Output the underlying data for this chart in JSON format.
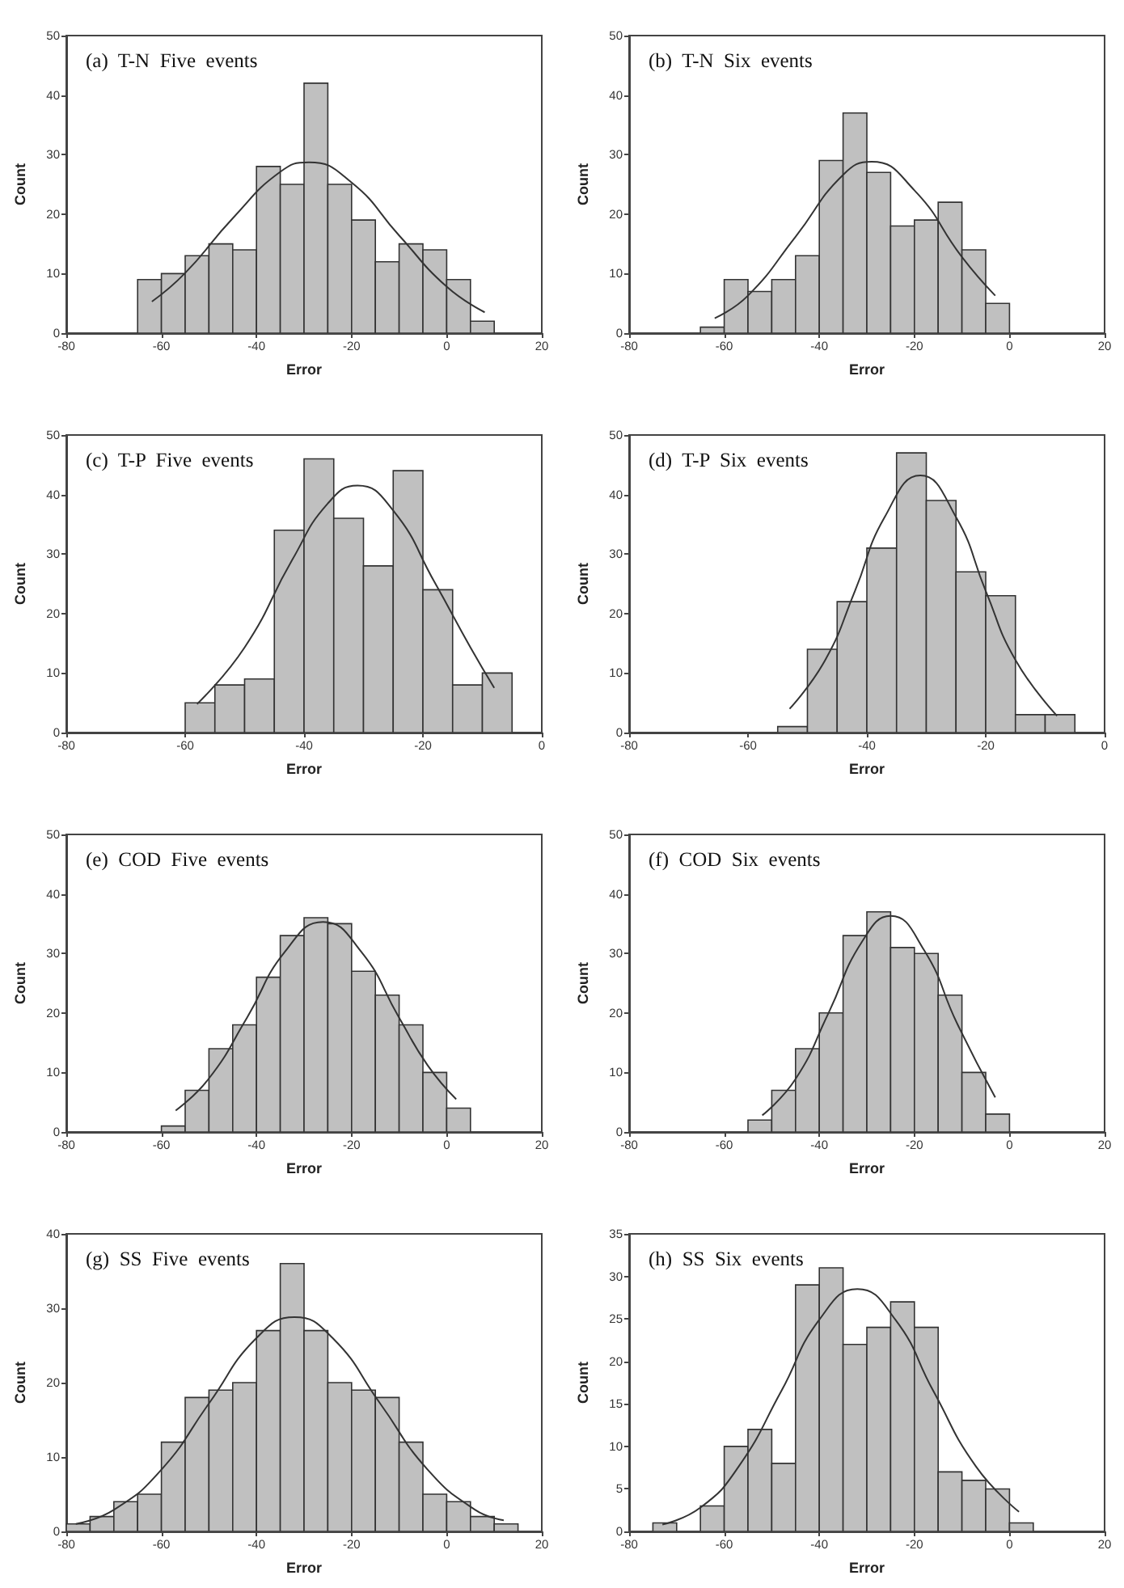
{
  "chart_data": [
    {
      "type": "histogram",
      "title": "(a)  T-N  Five  events",
      "xlabel": "Error",
      "ylabel": "Count",
      "color": "#c0c0c0",
      "xlim": [
        -80,
        20
      ],
      "xticks": [
        -80,
        -60,
        -40,
        -20,
        0,
        20
      ],
      "ylim": [
        0,
        50
      ],
      "yticks": [
        0,
        10,
        20,
        30,
        40,
        50
      ],
      "bins": [
        -65,
        -60,
        -55,
        -50,
        -45,
        -40,
        -35,
        -30,
        -25,
        -20,
        -15,
        -10,
        -5,
        0,
        5,
        10
      ],
      "values": [
        9,
        10,
        13,
        15,
        14,
        28,
        25,
        42,
        25,
        19,
        12,
        15,
        14,
        9,
        2
      ],
      "series": [
        {
          "type": "line",
          "color": "#333333",
          "x": [
            -62,
            -55,
            -45,
            -35,
            -29,
            -20,
            -10,
            0,
            8
          ],
          "values": [
            5.3,
            10.1,
            19.3,
            27.1,
            28.7,
            25.3,
            16.4,
            7.8,
            3.5
          ]
        }
      ]
    },
    {
      "type": "histogram",
      "title": "(b)  T-N  Six  events",
      "xlabel": "Error",
      "ylabel": "Count",
      "color": "#c0c0c0",
      "xlim": [
        -80,
        20
      ],
      "xticks": [
        -80,
        -60,
        -40,
        -20,
        0,
        20
      ],
      "ylim": [
        0,
        50
      ],
      "yticks": [
        0,
        10,
        20,
        30,
        40,
        50
      ],
      "bins": [
        -65,
        -60,
        -55,
        -50,
        -45,
        -40,
        -35,
        -30,
        -25,
        -20,
        -15,
        -10,
        -5,
        0
      ],
      "values": [
        1,
        9,
        7,
        9,
        13,
        29,
        37,
        27,
        18,
        19,
        22,
        14,
        5
      ],
      "series": [
        {
          "type": "line",
          "color": "#333333",
          "x": [
            -62,
            -55,
            -45,
            -35,
            -29,
            -20,
            -10,
            -3
          ],
          "values": [
            2.5,
            6.3,
            16.2,
            26.6,
            28.8,
            24,
            12.8,
            6.3
          ]
        }
      ]
    },
    {
      "type": "histogram",
      "title": "(c)  T-P  Five  events",
      "xlabel": "Error",
      "ylabel": "Count",
      "color": "#c0c0c0",
      "xlim": [
        -80,
        0
      ],
      "xticks": [
        -80,
        -60,
        -40,
        -20,
        0
      ],
      "ylim": [
        0,
        50
      ],
      "yticks": [
        0,
        10,
        20,
        30,
        40,
        50
      ],
      "bins": [
        -60,
        -55,
        -50,
        -45,
        -40,
        -35,
        -30,
        -25,
        -20,
        -15,
        -10,
        -5
      ],
      "values": [
        5,
        8,
        9,
        34,
        46,
        36,
        28,
        44,
        24,
        8,
        10
      ],
      "series": [
        {
          "type": "line",
          "color": "#333333",
          "x": [
            -58,
            -50,
            -42,
            -36,
            -31,
            -25,
            -18,
            -12,
            -8
          ],
          "values": [
            4.8,
            14.3,
            29,
            38.5,
            41.5,
            37.3,
            25.2,
            14.3,
            7.5
          ]
        }
      ]
    },
    {
      "type": "histogram",
      "title": "(d)  T-P  Six  events",
      "xlabel": "Error",
      "ylabel": "Count",
      "color": "#c0c0c0",
      "xlim": [
        -80,
        0
      ],
      "xticks": [
        -80,
        -60,
        -40,
        -20,
        0
      ],
      "ylim": [
        0,
        50
      ],
      "yticks": [
        0,
        10,
        20,
        30,
        40,
        50
      ],
      "bins": [
        -55,
        -50,
        -45,
        -40,
        -35,
        -30,
        -25,
        -20,
        -15,
        -10,
        -5
      ],
      "values": [
        1,
        14,
        22,
        31,
        47,
        39,
        27,
        23,
        3,
        3
      ],
      "series": [
        {
          "type": "line",
          "color": "#333333",
          "x": [
            -53,
            -47,
            -42,
            -37,
            -31,
            -25,
            -20,
            -15,
            -8
          ],
          "values": [
            4,
            12.2,
            23.8,
            36.2,
            43.2,
            36.2,
            23.8,
            12.2,
            2.8
          ]
        }
      ]
    },
    {
      "type": "histogram",
      "title": "(e)  COD  Five  events",
      "xlabel": "Error",
      "ylabel": "Count",
      "color": "#c0c0c0",
      "xlim": [
        -80,
        20
      ],
      "xticks": [
        -80,
        -60,
        -40,
        -20,
        0,
        20
      ],
      "ylim": [
        0,
        50
      ],
      "yticks": [
        0,
        10,
        20,
        30,
        40,
        50
      ],
      "bins": [
        -60,
        -55,
        -50,
        -45,
        -40,
        -35,
        -30,
        -25,
        -20,
        -15,
        -10,
        -5,
        0,
        5
      ],
      "values": [
        1,
        7,
        14,
        18,
        26,
        33,
        36,
        35,
        27,
        23,
        18,
        10,
        4
      ],
      "series": [
        {
          "type": "line",
          "color": "#333333",
          "x": [
            -57,
            -50,
            -42,
            -34,
            -26,
            -18,
            -10,
            -4,
            2
          ],
          "values": [
            3.6,
            9,
            19.2,
            30.3,
            35.3,
            30.3,
            19.2,
            11.2,
            5.5
          ]
        }
      ]
    },
    {
      "type": "histogram",
      "title": "(f)  COD  Six  events",
      "xlabel": "Error",
      "ylabel": "Count",
      "color": "#c0c0c0",
      "xlim": [
        -80,
        20
      ],
      "xticks": [
        -80,
        -60,
        -40,
        -20,
        0,
        20
      ],
      "ylim": [
        0,
        50
      ],
      "yticks": [
        0,
        10,
        20,
        30,
        40,
        50
      ],
      "bins": [
        -55,
        -50,
        -45,
        -40,
        -35,
        -30,
        -25,
        -20,
        -15,
        -10,
        -5,
        0
      ],
      "values": [
        2,
        7,
        14,
        20,
        33,
        37,
        31,
        30,
        23,
        10,
        3
      ],
      "series": [
        {
          "type": "line",
          "color": "#333333",
          "x": [
            -52,
            -45,
            -38,
            -31,
            -25,
            -18,
            -11,
            -3
          ],
          "values": [
            2.8,
            8.9,
            20.1,
            32,
            36.3,
            30.6,
            18.2,
            5.8
          ]
        }
      ]
    },
    {
      "type": "histogram",
      "title": "(g)  SS  Five  events",
      "xlabel": "Error",
      "ylabel": "Count",
      "color": "#c0c0c0",
      "xlim": [
        -80,
        20
      ],
      "xticks": [
        -80,
        -60,
        -40,
        -20,
        0,
        20
      ],
      "ylim": [
        0,
        40
      ],
      "yticks": [
        0,
        10,
        20,
        30,
        40
      ],
      "bins": [
        -80,
        -75,
        -70,
        -65,
        -60,
        -55,
        -50,
        -45,
        -40,
        -35,
        -30,
        -25,
        -20,
        -15,
        -10,
        -5,
        0,
        5,
        10,
        15
      ],
      "values": [
        1,
        2,
        4,
        5,
        12,
        18,
        19,
        20,
        27,
        36,
        27,
        20,
        19,
        18,
        12,
        5,
        4,
        2,
        1
      ],
      "series": [
        {
          "type": "line",
          "color": "#333333",
          "x": [
            -78,
            -70,
            -60,
            -50,
            -40,
            -32,
            -24,
            -14,
            -4,
            6,
            12
          ],
          "values": [
            1,
            2.9,
            8.3,
            17.2,
            26,
            28.8,
            26,
            17.2,
            8.3,
            2.9,
            1.5
          ]
        }
      ]
    },
    {
      "type": "histogram",
      "title": "(h)  SS  Six  events",
      "xlabel": "Error",
      "ylabel": "Count",
      "color": "#c0c0c0",
      "xlim": [
        -80,
        20
      ],
      "xticks": [
        -80,
        -60,
        -40,
        -20,
        0,
        20
      ],
      "ylim": [
        0,
        35
      ],
      "yticks": [
        0,
        5,
        10,
        15,
        20,
        25,
        30,
        35
      ],
      "bins": [
        -75,
        -70,
        -65,
        -60,
        -55,
        -50,
        -45,
        -40,
        -35,
        -30,
        -25,
        -20,
        -15,
        -10,
        -5,
        0,
        5
      ],
      "values": [
        1,
        0,
        3,
        10,
        12,
        8,
        29,
        31,
        22,
        24,
        27,
        24,
        7,
        6,
        5,
        1
      ],
      "series": [
        {
          "type": "line",
          "color": "#333333",
          "x": [
            -73,
            -65,
            -57,
            -48,
            -40,
            -32,
            -24,
            -16,
            -7,
            2
          ],
          "values": [
            0.8,
            2.8,
            7.6,
            16.5,
            24.9,
            28.5,
            24.9,
            16.5,
            7.6,
            2.3
          ]
        }
      ]
    }
  ]
}
